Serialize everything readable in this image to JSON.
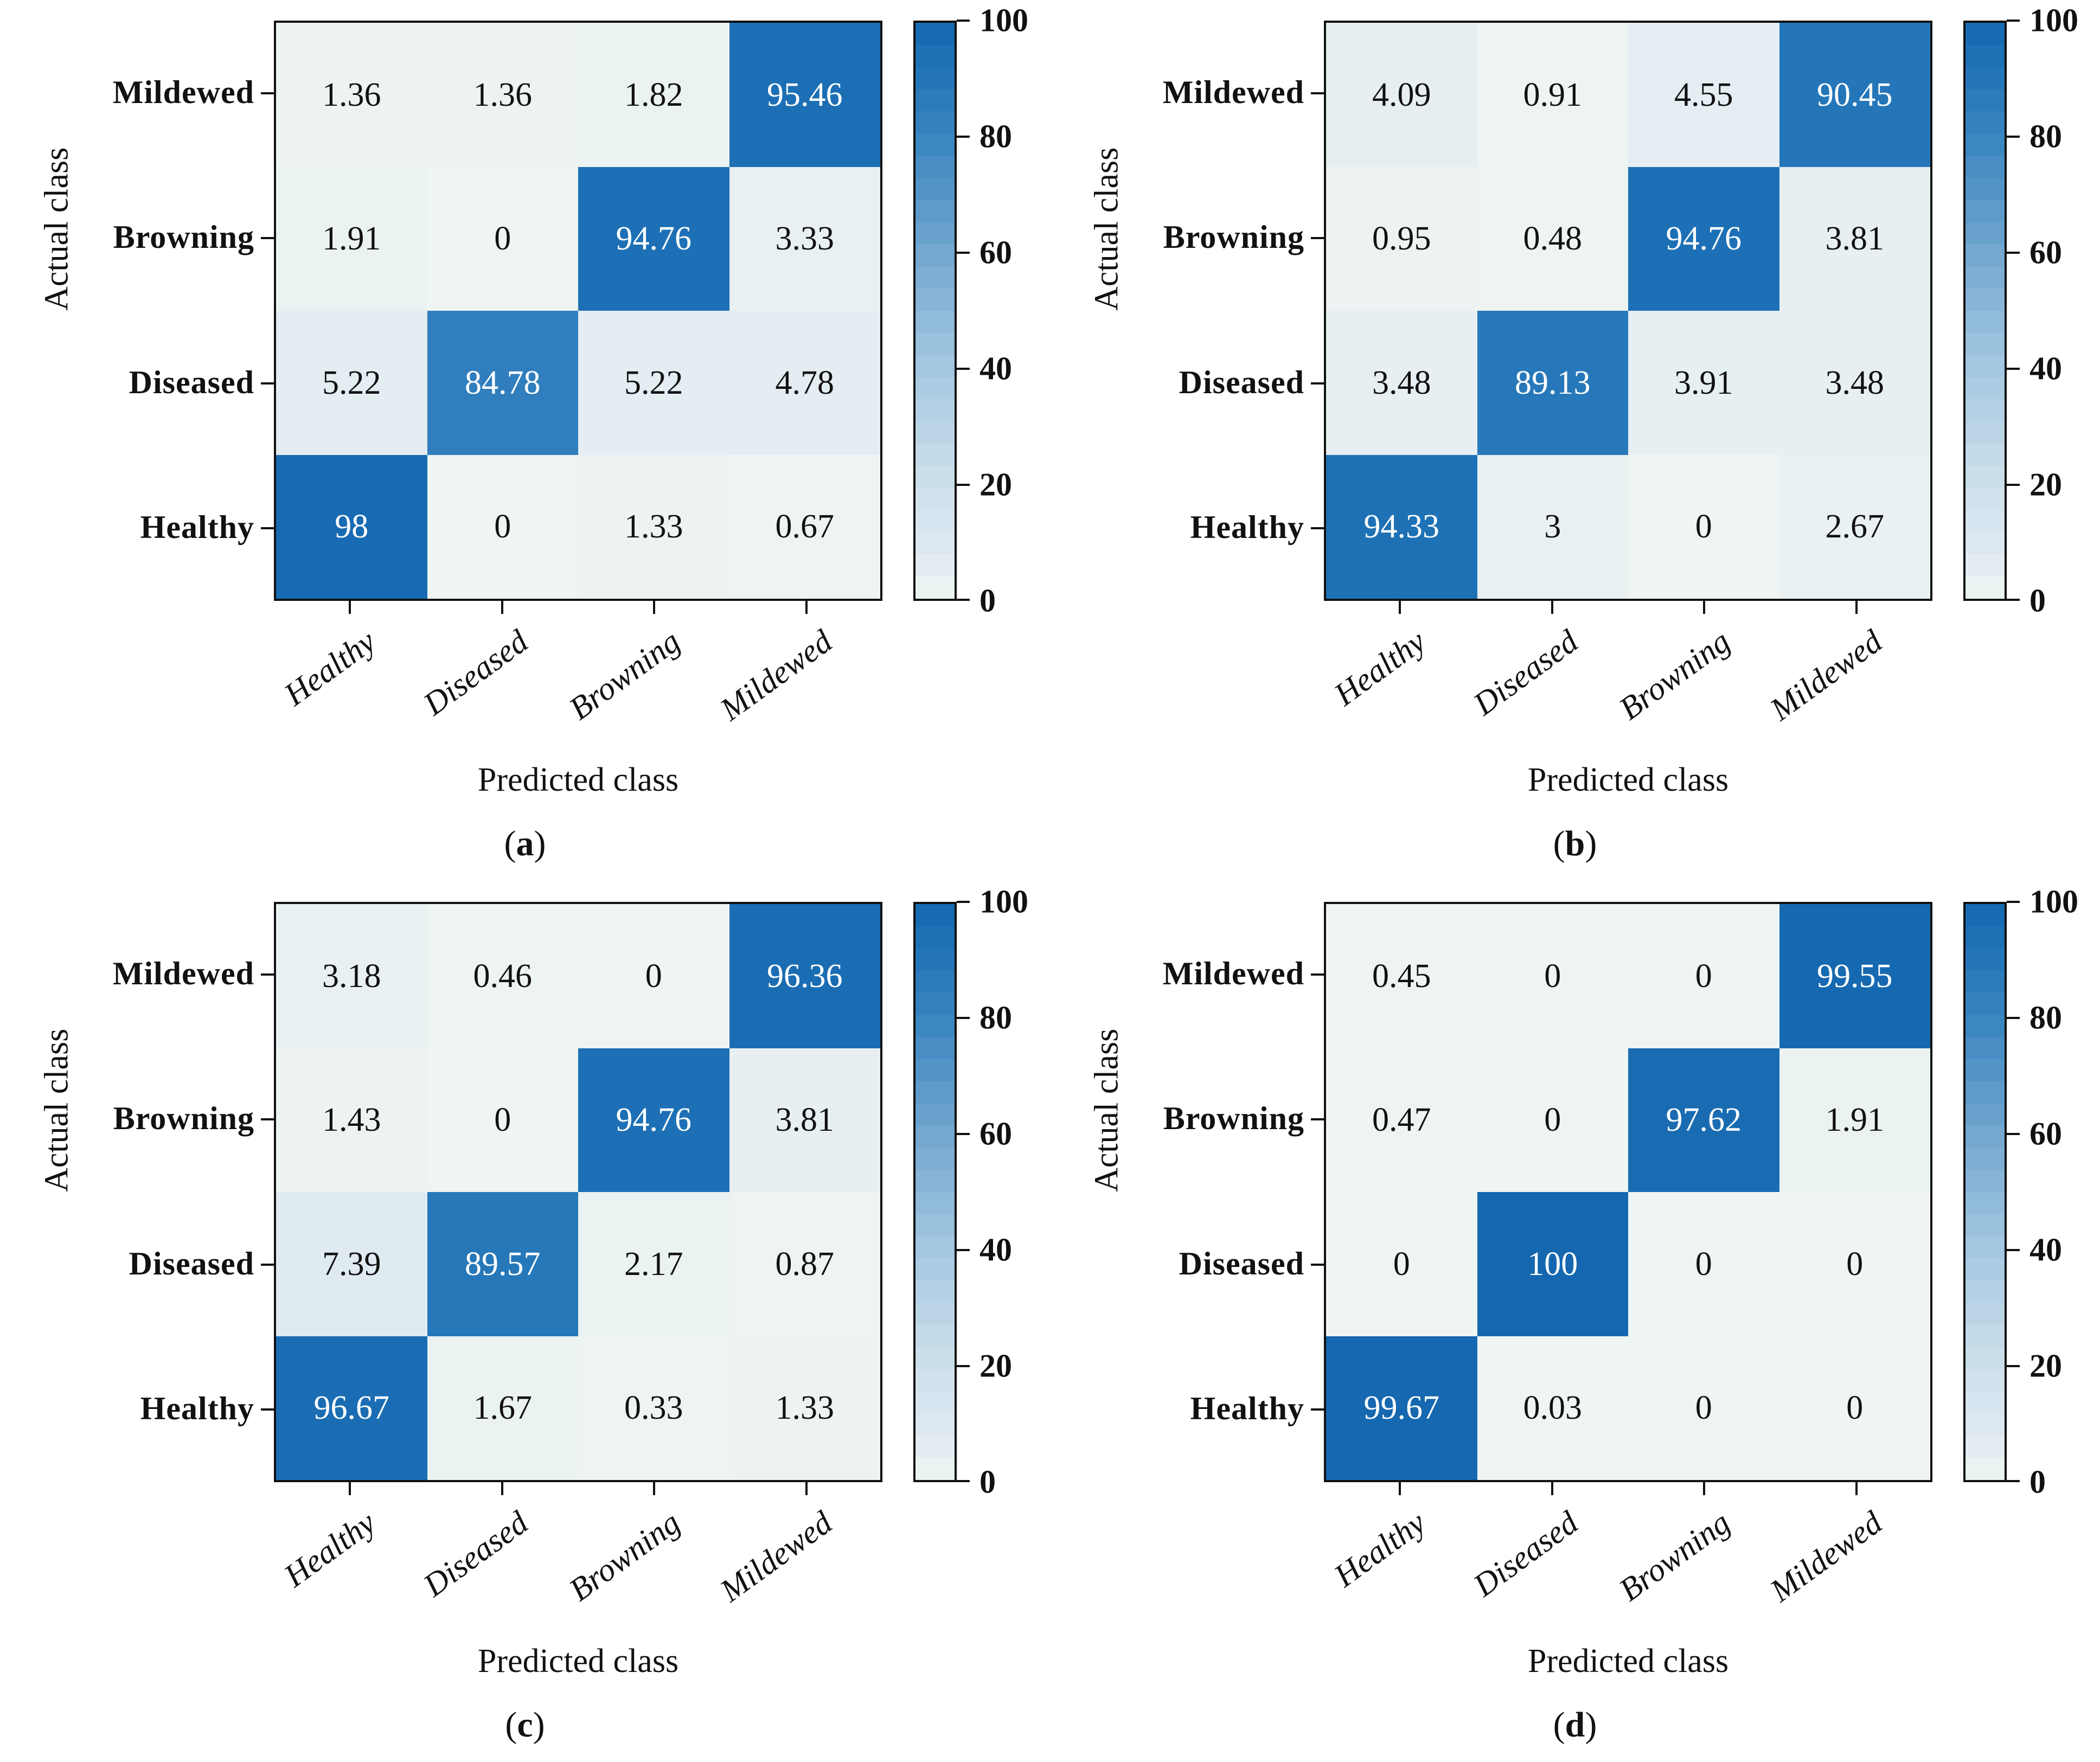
{
  "figure": {
    "xlabel": "Predicted class",
    "ylabel": "Actual class",
    "x_categories": [
      "Healthy",
      "Diseased",
      "Browning",
      "Mildewed"
    ],
    "y_categories_top_to_bottom": [
      "Mildewed",
      "Browning",
      "Diseased",
      "Healthy"
    ],
    "colorbar_ticks": [
      "0",
      "20",
      "40",
      "60",
      "80",
      "100"
    ]
  },
  "colors": {
    "cmap_stops": [
      [
        0,
        "#eff5f2"
      ],
      [
        5,
        "#e4edf2"
      ],
      [
        10,
        "#dbe7f0"
      ],
      [
        20,
        "#cde0ec"
      ],
      [
        40,
        "#a5c8e1"
      ],
      [
        60,
        "#73a7d0"
      ],
      [
        80,
        "#3a85c0"
      ],
      [
        90,
        "#2577b9"
      ],
      [
        100,
        "#1568b0"
      ]
    ],
    "text_dark": "#111111",
    "text_light": "#ffffff",
    "axis": "#111111"
  },
  "chart_data": [
    {
      "type": "heatmap",
      "caption": {
        "open": "(",
        "letter": "a",
        "close": ")"
      },
      "xlabel": "Predicted class",
      "ylabel": "Actual class",
      "x_categories": [
        "Healthy",
        "Diseased",
        "Browning",
        "Mildewed"
      ],
      "y_categories_top_to_bottom": [
        "Mildewed",
        "Browning",
        "Diseased",
        "Healthy"
      ],
      "values": [
        [
          "1.36",
          "1.36",
          "1.82",
          "95.46"
        ],
        [
          "1.91",
          "0",
          "94.76",
          "3.33"
        ],
        [
          "5.22",
          "84.78",
          "5.22",
          "4.78"
        ],
        [
          "98",
          "0",
          "1.33",
          "0.67"
        ]
      ],
      "colorbar": {
        "min": 0,
        "max": 100,
        "ticks": [
          "0",
          "20",
          "40",
          "60",
          "80",
          "100"
        ]
      }
    },
    {
      "type": "heatmap",
      "caption": {
        "open": "(",
        "letter": "b",
        "close": ")"
      },
      "xlabel": "Predicted class",
      "ylabel": "Actual class",
      "x_categories": [
        "Healthy",
        "Diseased",
        "Browning",
        "Mildewed"
      ],
      "y_categories_top_to_bottom": [
        "Mildewed",
        "Browning",
        "Diseased",
        "Healthy"
      ],
      "values": [
        [
          "4.09",
          "0.91",
          "4.55",
          "90.45"
        ],
        [
          "0.95",
          "0.48",
          "94.76",
          "3.81"
        ],
        [
          "3.48",
          "89.13",
          "3.91",
          "3.48"
        ],
        [
          "94.33",
          "3",
          "0",
          "2.67"
        ]
      ],
      "colorbar": {
        "min": 0,
        "max": 100,
        "ticks": [
          "0",
          "20",
          "40",
          "60",
          "80",
          "100"
        ]
      }
    },
    {
      "type": "heatmap",
      "caption": {
        "open": "(",
        "letter": "c",
        "close": ")"
      },
      "xlabel": "Predicted class",
      "ylabel": "Actual class",
      "x_categories": [
        "Healthy",
        "Diseased",
        "Browning",
        "Mildewed"
      ],
      "y_categories_top_to_bottom": [
        "Mildewed",
        "Browning",
        "Diseased",
        "Healthy"
      ],
      "values": [
        [
          "3.18",
          "0.46",
          "0",
          "96.36"
        ],
        [
          "1.43",
          "0",
          "94.76",
          "3.81"
        ],
        [
          "7.39",
          "89.57",
          "2.17",
          "0.87"
        ],
        [
          "96.67",
          "1.67",
          "0.33",
          "1.33"
        ]
      ],
      "colorbar": {
        "min": 0,
        "max": 100,
        "ticks": [
          "0",
          "20",
          "40",
          "60",
          "80",
          "100"
        ]
      }
    },
    {
      "type": "heatmap",
      "caption": {
        "open": "(",
        "letter": "d",
        "close": ")"
      },
      "xlabel": "Predicted class",
      "ylabel": "Actual class",
      "x_categories": [
        "Healthy",
        "Diseased",
        "Browning",
        "Mildewed"
      ],
      "y_categories_top_to_bottom": [
        "Mildewed",
        "Browning",
        "Diseased",
        "Healthy"
      ],
      "values": [
        [
          "0.45",
          "0",
          "0",
          "99.55"
        ],
        [
          "0.47",
          "0",
          "97.62",
          "1.91"
        ],
        [
          "0",
          "100",
          "0",
          "0"
        ],
        [
          "99.67",
          "0.03",
          "0",
          "0"
        ]
      ],
      "colorbar": {
        "min": 0,
        "max": 100,
        "ticks": [
          "0",
          "20",
          "40",
          "60",
          "80",
          "100"
        ]
      }
    }
  ]
}
